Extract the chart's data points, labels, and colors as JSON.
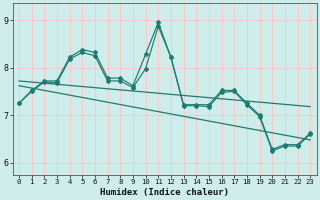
{
  "xlabel": "Humidex (Indice chaleur)",
  "xlim": [
    -0.5,
    23.5
  ],
  "ylim": [
    5.75,
    9.35
  ],
  "yticks": [
    6,
    7,
    8,
    9
  ],
  "xticks": [
    0,
    1,
    2,
    3,
    4,
    5,
    6,
    7,
    8,
    9,
    10,
    11,
    12,
    13,
    14,
    15,
    16,
    17,
    18,
    19,
    20,
    21,
    22,
    23
  ],
  "background_color": "#cdecea",
  "grid_color": "#f5c8c8",
  "line_color": "#1e7b70",
  "series1_x": [
    0,
    1,
    2,
    3,
    4,
    5,
    6,
    7,
    8,
    9,
    10,
    11,
    12,
    13,
    14,
    15,
    16,
    17,
    18,
    19,
    20,
    21,
    22,
    23
  ],
  "series1_y": [
    7.25,
    7.52,
    7.72,
    7.72,
    8.22,
    8.38,
    8.32,
    7.78,
    7.78,
    7.62,
    8.28,
    8.95,
    8.22,
    7.22,
    7.22,
    7.22,
    7.52,
    7.52,
    7.25,
    7.0,
    6.28,
    6.38,
    6.38,
    6.62
  ],
  "series2_x": [
    0,
    1,
    2,
    3,
    4,
    5,
    6,
    7,
    8,
    9,
    10,
    11,
    12,
    13,
    14,
    15,
    16,
    17,
    18,
    19,
    20,
    21,
    22,
    23
  ],
  "series2_y": [
    7.25,
    7.5,
    7.7,
    7.68,
    8.18,
    8.32,
    8.25,
    7.72,
    7.72,
    7.58,
    7.98,
    8.87,
    8.22,
    7.2,
    7.2,
    7.18,
    7.48,
    7.5,
    7.22,
    6.97,
    6.25,
    6.35,
    6.35,
    6.6
  ],
  "trend1_x": [
    0,
    23
  ],
  "trend1_y": [
    7.72,
    7.18
  ],
  "trend2_x": [
    0,
    23
  ],
  "trend2_y": [
    7.62,
    6.48
  ]
}
